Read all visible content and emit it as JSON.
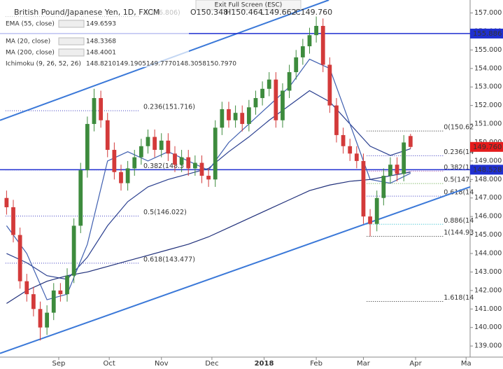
{
  "chart_data": {
    "type": "candlestick",
    "title": "British Pound/Japanese Yen, 1D, FXCM",
    "banner": "Exit Full Screen (ESC)",
    "ohlc_labels": [
      "O150.348",
      "H150.464",
      "L149.662",
      "C149.760"
    ],
    "x": [
      0,
      4,
      8,
      12,
      16,
      20,
      24,
      28,
      32,
      36,
      40,
      44,
      48,
      52,
      56,
      60,
      64,
      68,
      72,
      76,
      80,
      84,
      88,
      92,
      96,
      100,
      104,
      108,
      112,
      116,
      120,
      124,
      128,
      132,
      136,
      140,
      144,
      148,
      152,
      156,
      160,
      164,
      168,
      172,
      176,
      180,
      184,
      188,
      192,
      196,
      200,
      204,
      208,
      212,
      216,
      220,
      224,
      228,
      232,
      236,
      240
    ],
    "open": [
      147.0,
      146.5,
      145.0,
      142.5,
      141.8,
      141.0,
      140.0,
      140.8,
      142.0,
      141.8,
      142.8,
      145.5,
      148.5,
      151.0,
      152.4,
      151.2,
      149.6,
      148.4,
      147.8,
      148.6,
      149.2,
      149.8,
      150.3,
      149.6,
      150.1,
      149.4,
      148.8,
      149.2,
      148.6,
      148.9,
      148.2,
      148.0,
      150.8,
      151.8,
      151.2,
      151.6,
      151.0,
      151.9,
      152.4,
      152.9,
      153.4,
      151.2,
      152.8,
      153.8,
      154.6,
      155.2,
      155.8,
      156.3,
      154.2,
      152.0,
      150.4,
      149.8,
      149.4,
      149.0,
      146.0,
      145.6,
      147.0,
      148.2,
      148.8,
      148.3,
      150.348
    ],
    "high": [
      147.4,
      146.9,
      145.4,
      142.9,
      142.2,
      141.4,
      141.2,
      142.4,
      142.4,
      143.2,
      145.9,
      148.9,
      151.4,
      152.9,
      152.8,
      151.6,
      150.0,
      148.8,
      149.0,
      149.6,
      150.2,
      150.7,
      150.7,
      150.5,
      150.5,
      149.8,
      149.6,
      149.6,
      149.3,
      149.3,
      148.6,
      151.2,
      152.2,
      152.2,
      152.0,
      152.0,
      152.3,
      152.8,
      153.3,
      153.8,
      153.8,
      153.2,
      154.2,
      155.0,
      155.6,
      156.2,
      156.806,
      156.7,
      154.6,
      152.4,
      150.8,
      150.2,
      149.8,
      149.4,
      146.4,
      147.4,
      148.6,
      149.2,
      149.2,
      150.4,
      150.464
    ],
    "low": [
      146.1,
      144.6,
      142.1,
      141.4,
      140.6,
      139.3,
      139.6,
      140.4,
      141.4,
      141.4,
      142.4,
      145.1,
      148.1,
      150.6,
      150.8,
      149.2,
      148.0,
      147.4,
      147.4,
      148.2,
      148.8,
      149.4,
      149.2,
      149.2,
      149.0,
      148.4,
      148.4,
      148.2,
      148.2,
      147.8,
      147.6,
      147.6,
      150.4,
      150.8,
      150.8,
      150.6,
      150.6,
      151.5,
      152.0,
      152.5,
      150.8,
      150.8,
      152.4,
      153.4,
      154.2,
      154.8,
      155.4,
      153.8,
      151.6,
      150.0,
      149.4,
      149.0,
      148.6,
      145.6,
      144.93,
      145.2,
      146.6,
      147.8,
      147.9,
      147.9,
      149.662
    ],
    "close": [
      146.5,
      145.0,
      142.5,
      141.8,
      141.0,
      140.0,
      140.8,
      142.0,
      141.8,
      142.8,
      145.5,
      148.5,
      151.0,
      152.4,
      151.2,
      149.6,
      148.4,
      147.8,
      148.6,
      149.2,
      149.8,
      150.3,
      149.6,
      150.1,
      149.4,
      148.8,
      149.2,
      148.6,
      148.9,
      148.2,
      148.0,
      150.8,
      151.8,
      151.2,
      151.6,
      151.0,
      151.9,
      152.4,
      152.9,
      153.4,
      151.2,
      152.8,
      153.8,
      154.6,
      155.2,
      155.8,
      156.3,
      154.2,
      152.0,
      150.4,
      149.8,
      149.4,
      149.0,
      146.0,
      145.6,
      147.0,
      148.2,
      148.8,
      148.3,
      150.0,
      149.76
    ],
    "up_color": "#3d8b3d",
    "down_color": "#d33a3a",
    "indicators": [
      {
        "name": "EMA (55, close)",
        "value_label": "149.6593",
        "color": "#2a3f8f",
        "x": [
          0,
          12,
          24,
          36,
          48,
          60,
          72,
          84,
          96,
          108,
          120,
          132,
          144,
          156,
          168,
          180,
          192,
          204,
          216,
          228,
          240
        ],
        "values": [
          144.0,
          143.5,
          142.8,
          142.6,
          143.8,
          145.5,
          146.8,
          147.6,
          148.0,
          148.3,
          148.6,
          149.5,
          150.3,
          151.2,
          152.0,
          152.8,
          152.2,
          151.0,
          149.8,
          149.3,
          149.6593
        ]
      },
      {
        "name": "MA (20, close)",
        "value_label": "148.3368",
        "color": "#3f5fb0",
        "x": [
          0,
          12,
          24,
          36,
          48,
          60,
          72,
          84,
          96,
          108,
          120,
          132,
          144,
          156,
          168,
          180,
          192,
          204,
          216,
          228,
          240
        ],
        "values": [
          145.5,
          144.0,
          141.5,
          141.8,
          144.5,
          149.0,
          149.5,
          149.0,
          149.5,
          149.0,
          148.5,
          150.0,
          151.0,
          152.0,
          153.0,
          154.5,
          154.0,
          151.0,
          148.0,
          147.8,
          148.3368
        ]
      },
      {
        "name": "MA (200, close)",
        "value_label": "148.4001",
        "color": "#1f2f7a",
        "x": [
          0,
          12,
          24,
          36,
          48,
          60,
          72,
          84,
          96,
          108,
          120,
          132,
          144,
          156,
          168,
          180,
          192,
          204,
          216,
          228,
          240
        ],
        "values": [
          141.3,
          142.0,
          142.5,
          142.8,
          143.0,
          143.3,
          143.6,
          143.9,
          144.2,
          144.5,
          144.9,
          145.4,
          145.9,
          146.4,
          146.9,
          147.4,
          147.7,
          147.9,
          148.0,
          148.2,
          148.4001
        ]
      }
    ],
    "ichimoku": {
      "name": "Ichimoku (9, 26, 52, 26)",
      "value_labels": [
        "148.8210",
        "149.1905",
        "149.7770",
        "148.3058",
        "150.7970"
      ]
    },
    "trend_lines": [
      {
        "color": "#3a78d8",
        "x": [
          -3.9,
          191.5
        ],
        "y": [
          151.2,
          157.7
        ]
      },
      {
        "color": "#3a78d8",
        "x": [
          -3.9,
          275.4
        ],
        "y": [
          138.6,
          147.6
        ]
      }
    ],
    "price_lines": [
      {
        "value": 155.886,
        "label": "155.886",
        "color": "#1f2fd0"
      },
      {
        "value": 148.528,
        "label": "148.528",
        "color": "#1f2fd0"
      }
    ],
    "last_price": {
      "value": 149.76,
      "label": "149.760",
      "color": "#e51c1c"
    },
    "fib_sets": [
      {
        "x": [
          -0.6,
          79
        ],
        "levels": [
          {
            "value": 156.806,
            "label": "0(156.806)",
            "color": "#222"
          },
          {
            "value": 151.716,
            "label": "0.236(151.716)",
            "color": "#3a3ac0"
          },
          {
            "value": 148.52,
            "label": "0.382(148.5",
            "color": "#3a3ac0"
          },
          {
            "value": 146.022,
            "label": "0.5(146.022)",
            "color": "#3a3ac0"
          },
          {
            "value": 143.477,
            "label": "0.618(143.477)",
            "color": "#3a3ac0"
          }
        ]
      },
      {
        "x": [
          214,
          260
        ],
        "levels": [
          {
            "value": 150.62,
            "label": "0(150.62",
            "color": "#222"
          },
          {
            "value": 149.28,
            "label": "0.236(14",
            "color": "#3a3ac0"
          },
          {
            "value": 148.45,
            "label": "0.382(14",
            "color": "#9a3aa0"
          },
          {
            "value": 147.78,
            "label": "0.5(147.",
            "color": "#5aa03a"
          },
          {
            "value": 147.1,
            "label": "0.618(14",
            "color": "#3a3ac0"
          },
          {
            "value": 145.58,
            "label": "0.886(14",
            "color": "#18b8c8"
          },
          {
            "value": 144.93,
            "label": "1(144.93",
            "color": "#222"
          },
          {
            "value": 141.41,
            "label": "1.618(14",
            "color": "#222"
          }
        ]
      }
    ],
    "xlim": [
      -3.9,
      275.4
    ],
    "xticks": [
      {
        "value": 31,
        "label": "Sep"
      },
      {
        "value": 61,
        "label": "Oct"
      },
      {
        "value": 92,
        "label": "Nov"
      },
      {
        "value": 122,
        "label": "Dec"
      },
      {
        "value": 153,
        "label": "2018"
      },
      {
        "value": 184,
        "label": "Feb"
      },
      {
        "value": 212,
        "label": "Mar"
      },
      {
        "value": 243,
        "label": "Apr"
      },
      {
        "value": 273,
        "label": "Ma"
      }
    ],
    "ylim": [
      138.4,
      157.7
    ],
    "yticks": [
      {
        "value": 139,
        "label": "139.000"
      },
      {
        "value": 140,
        "label": "140.000"
      },
      {
        "value": 141,
        "label": "141.000"
      },
      {
        "value": 142,
        "label": "142.000"
      },
      {
        "value": 143,
        "label": "143.000"
      },
      {
        "value": 144,
        "label": "144.000"
      },
      {
        "value": 145,
        "label": "145.000"
      },
      {
        "value": 146,
        "label": "146.000"
      },
      {
        "value": 147,
        "label": "147.000"
      },
      {
        "value": 148,
        "label": "148.000"
      },
      {
        "value": 149,
        "label": "149.000"
      },
      {
        "value": 150,
        "label": "150.000"
      },
      {
        "value": 151,
        "label": "151.000"
      },
      {
        "value": 152,
        "label": "152.000"
      },
      {
        "value": 153,
        "label": "153.000"
      },
      {
        "value": 154,
        "label": "154.000"
      },
      {
        "value": 155,
        "label": "155.000"
      },
      {
        "value": 156,
        "label": "156.000"
      },
      {
        "value": 157,
        "label": "157.000"
      }
    ]
  }
}
